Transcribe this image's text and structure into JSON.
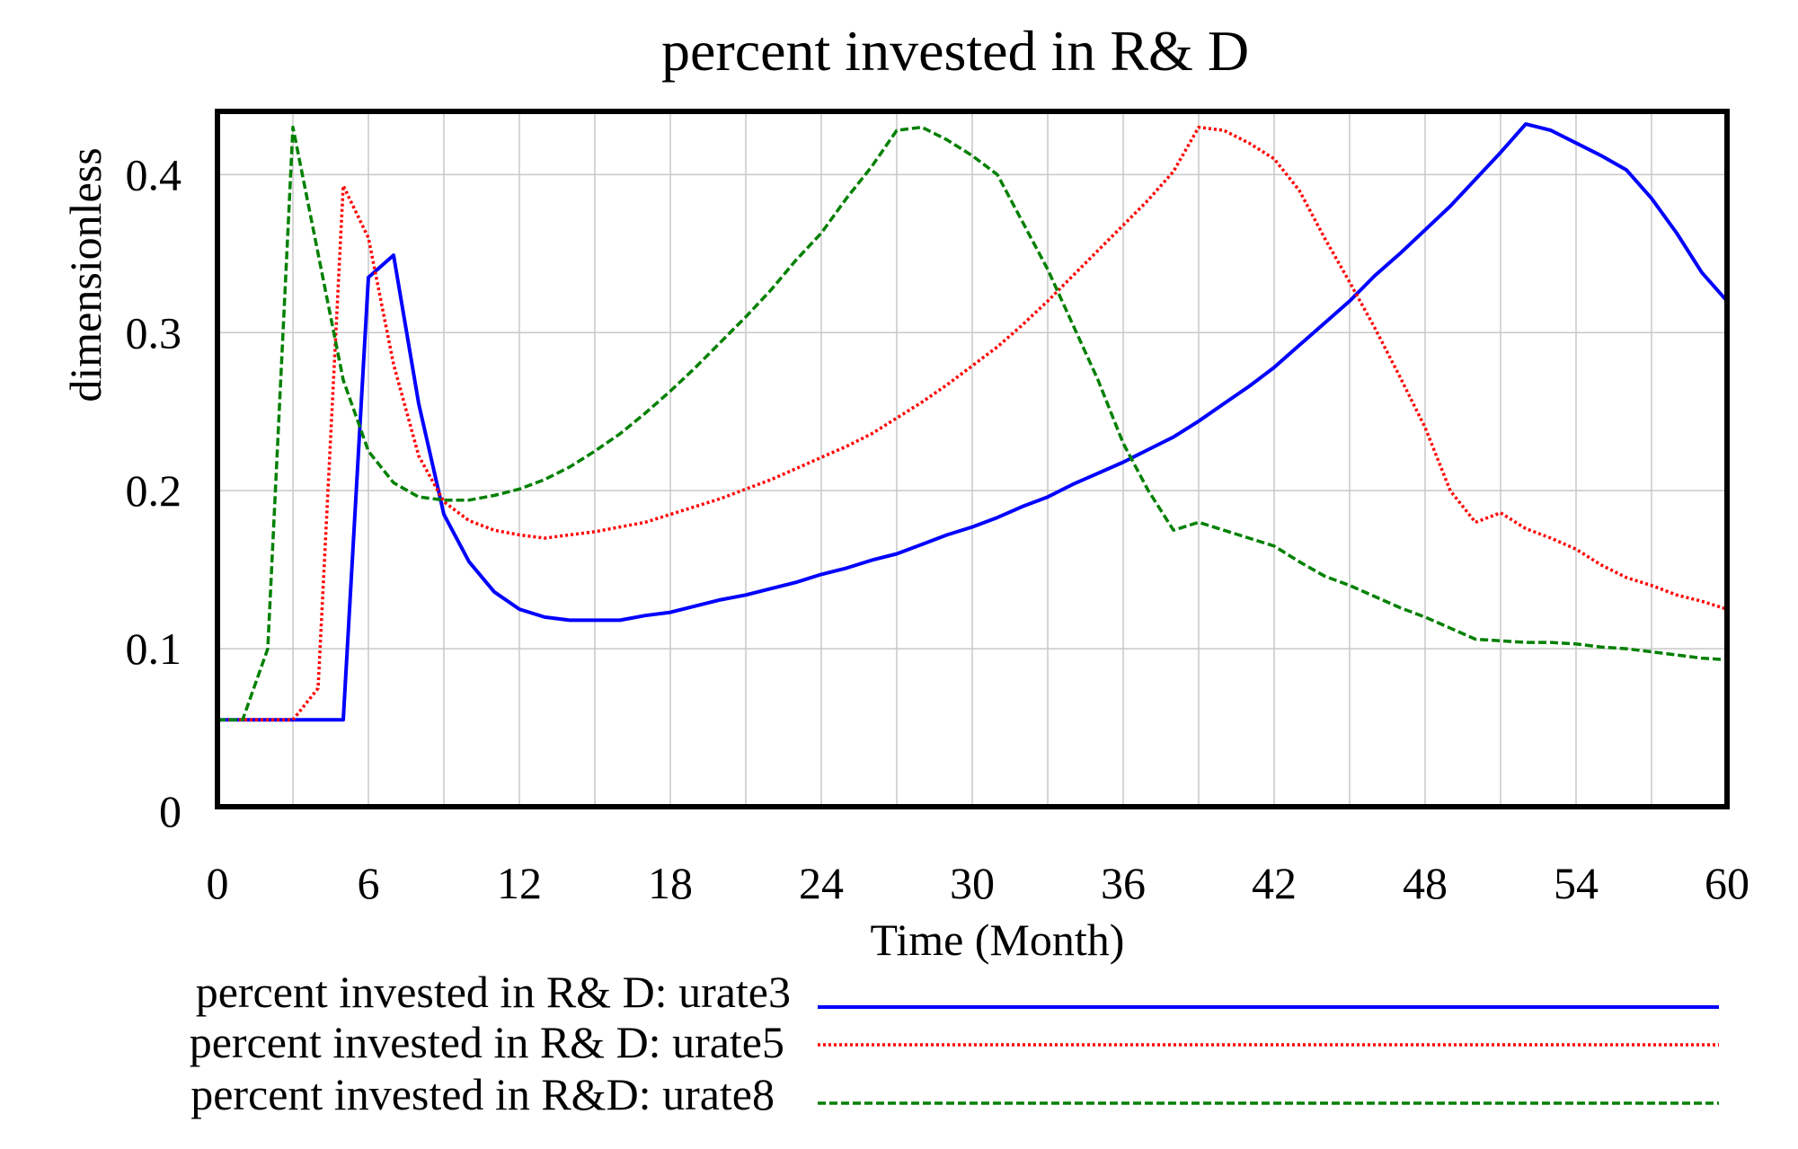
{
  "chart_data": {
    "type": "line",
    "title": "percent invested in R& D",
    "xlabel": "Time (Month)",
    "ylabel": "dimensionless",
    "xlim": [
      0,
      60
    ],
    "ylim": [
      0,
      0.44
    ],
    "xticks": [
      0,
      6,
      12,
      18,
      24,
      30,
      36,
      42,
      48,
      54,
      60
    ],
    "xtick_labels": [
      "0",
      "6",
      "12",
      "18",
      "24",
      "30",
      "36",
      "42",
      "48",
      "54",
      "60"
    ],
    "yticks": [
      0,
      0.1,
      0.2,
      0.3,
      0.4
    ],
    "ytick_labels": [
      "0",
      "0.1",
      "0.2",
      "0.3",
      "0.4"
    ],
    "grid": true,
    "legend_position": "bottom",
    "series": [
      {
        "name": "percent invested in R& D: urate3",
        "color": "#0000ff",
        "dash": "solid",
        "x": [
          0,
          1,
          2,
          3,
          4,
          5,
          6,
          7,
          8,
          9,
          10,
          11,
          12,
          13,
          14,
          15,
          16,
          17,
          18,
          19,
          20,
          21,
          22,
          23,
          24,
          25,
          26,
          27,
          28,
          29,
          30,
          31,
          32,
          33,
          34,
          35,
          36,
          37,
          38,
          39,
          40,
          41,
          42,
          43,
          44,
          45,
          46,
          47,
          48,
          49,
          50,
          51,
          52,
          53,
          54,
          55,
          56,
          57,
          58,
          59,
          60
        ],
        "values": [
          0.055,
          0.055,
          0.055,
          0.055,
          0.055,
          0.055,
          0.335,
          0.349,
          0.255,
          0.185,
          0.155,
          0.136,
          0.125,
          0.12,
          0.118,
          0.118,
          0.118,
          0.121,
          0.123,
          0.127,
          0.131,
          0.134,
          0.138,
          0.142,
          0.147,
          0.151,
          0.156,
          0.16,
          0.166,
          0.172,
          0.177,
          0.183,
          0.19,
          0.196,
          0.204,
          0.211,
          0.218,
          0.226,
          0.234,
          0.244,
          0.255,
          0.266,
          0.278,
          0.292,
          0.306,
          0.32,
          0.336,
          0.35,
          0.365,
          0.38,
          0.397,
          0.414,
          0.432,
          0.428,
          0.42,
          0.412,
          0.403,
          0.385,
          0.363,
          0.338,
          0.32
        ]
      },
      {
        "name": "percent invested in R& D: urate5",
        "color": "#ff0000",
        "dash": "dotted",
        "x": [
          0,
          1,
          2,
          3,
          4,
          5,
          6,
          7,
          8,
          9,
          10,
          11,
          12,
          13,
          14,
          15,
          16,
          17,
          18,
          19,
          20,
          21,
          22,
          23,
          24,
          25,
          26,
          27,
          28,
          29,
          30,
          31,
          32,
          33,
          34,
          35,
          36,
          37,
          38,
          39,
          40,
          41,
          42,
          43,
          44,
          45,
          46,
          47,
          48,
          49,
          50,
          51,
          52,
          53,
          54,
          55,
          56,
          57,
          58,
          59,
          60
        ],
        "values": [
          0.055,
          0.055,
          0.055,
          0.055,
          0.075,
          0.393,
          0.36,
          0.28,
          0.222,
          0.193,
          0.181,
          0.175,
          0.172,
          0.17,
          0.172,
          0.174,
          0.177,
          0.18,
          0.185,
          0.19,
          0.195,
          0.201,
          0.207,
          0.214,
          0.221,
          0.228,
          0.236,
          0.246,
          0.256,
          0.267,
          0.279,
          0.291,
          0.305,
          0.32,
          0.336,
          0.352,
          0.368,
          0.384,
          0.402,
          0.43,
          0.428,
          0.42,
          0.41,
          0.39,
          0.36,
          0.332,
          0.303,
          0.272,
          0.24,
          0.2,
          0.18,
          0.186,
          0.176,
          0.17,
          0.163,
          0.153,
          0.145,
          0.14,
          0.134,
          0.13,
          0.125
        ]
      },
      {
        "name": "percent invested in R&D: urate8",
        "color": "#008000",
        "dash": "dashed",
        "x": [
          0,
          1,
          2,
          3,
          4,
          5,
          6,
          7,
          8,
          9,
          10,
          11,
          12,
          13,
          14,
          15,
          16,
          17,
          18,
          19,
          20,
          21,
          22,
          23,
          24,
          25,
          26,
          27,
          28,
          29,
          30,
          31,
          32,
          33,
          34,
          35,
          36,
          37,
          38,
          39,
          40,
          41,
          42,
          43,
          44,
          45,
          46,
          47,
          48,
          49,
          50,
          51,
          52,
          53,
          54,
          55,
          56,
          57,
          58,
          59,
          60
        ],
        "values": [
          0.055,
          0.055,
          0.1,
          0.43,
          0.35,
          0.27,
          0.225,
          0.205,
          0.196,
          0.194,
          0.194,
          0.197,
          0.201,
          0.207,
          0.215,
          0.225,
          0.236,
          0.249,
          0.263,
          0.278,
          0.294,
          0.31,
          0.327,
          0.346,
          0.363,
          0.385,
          0.405,
          0.428,
          0.43,
          0.422,
          0.412,
          0.4,
          0.37,
          0.34,
          0.305,
          0.27,
          0.23,
          0.2,
          0.175,
          0.18,
          0.175,
          0.17,
          0.165,
          0.155,
          0.146,
          0.14,
          0.133,
          0.126,
          0.12,
          0.113,
          0.106,
          0.105,
          0.104,
          0.104,
          0.103,
          0.101,
          0.1,
          0.098,
          0.096,
          0.094,
          0.093
        ]
      }
    ]
  }
}
